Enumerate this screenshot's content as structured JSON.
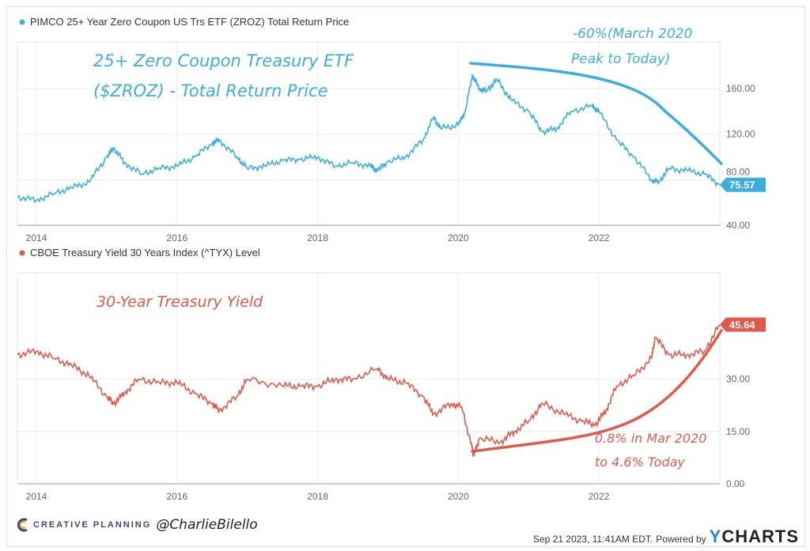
{
  "chart_data": [
    {
      "type": "line",
      "legend": "PIMCO 25+ Year Zero Coupon US Trs ETF (ZROZ) Total Return Price",
      "annotation_title": [
        "25+ Zero Coupon Treasury ETF",
        "($ZROZ) - Total Return Price"
      ],
      "annotation_note": [
        "-60%(March 2020",
        "Peak to Today)"
      ],
      "color": "#3aaee0",
      "last_value_label": "75.57",
      "xlim": [
        2013.73,
        2023.72
      ],
      "ylim": [
        40,
        201
      ],
      "x_ticks": [
        "2014",
        "2016",
        "2018",
        "2020",
        "2022"
      ],
      "y_ticks": [
        "40.00",
        "80.00",
        "120.00",
        "160.00"
      ],
      "grid": true,
      "x": [
        2013.73,
        2014.0,
        2014.25,
        2014.5,
        2014.75,
        2015.0,
        2015.1,
        2015.25,
        2015.5,
        2015.75,
        2016.0,
        2016.25,
        2016.5,
        2016.6,
        2016.85,
        2017.0,
        2017.25,
        2017.5,
        2017.75,
        2018.0,
        2018.25,
        2018.5,
        2018.75,
        2018.85,
        2019.0,
        2019.25,
        2019.5,
        2019.65,
        2019.75,
        2020.0,
        2020.1,
        2020.2,
        2020.3,
        2020.4,
        2020.55,
        2020.75,
        2021.0,
        2021.2,
        2021.4,
        2021.6,
        2021.9,
        2022.0,
        2022.25,
        2022.5,
        2022.75,
        2022.85,
        2023.0,
        2023.25,
        2023.5,
        2023.72
      ],
      "y": [
        65,
        62,
        68,
        73,
        78,
        100,
        108,
        95,
        85,
        90,
        92,
        100,
        112,
        115,
        100,
        90,
        92,
        97,
        98,
        100,
        92,
        95,
        92,
        88,
        96,
        100,
        115,
        135,
        125,
        128,
        140,
        172,
        160,
        158,
        168,
        150,
        140,
        122,
        125,
        140,
        145,
        140,
        115,
        100,
        80,
        78,
        90,
        88,
        85,
        75.57
      ]
    },
    {
      "type": "line",
      "legend": "CBOE Treasury Yield 30 Years Index (^TYX) Level",
      "annotation_title": [
        "30-Year Treasury Yield"
      ],
      "annotation_note": [
        "0.8% in Mar 2020",
        "to 4.6% Today"
      ],
      "color": "#e05a4a",
      "last_value_label": "45.64",
      "xlim": [
        2013.73,
        2023.72
      ],
      "ylim": [
        0,
        60.5
      ],
      "x_ticks": [
        "2014",
        "2016",
        "2018",
        "2020",
        "2022"
      ],
      "y_ticks": [
        "0.00",
        "15.00",
        "30.00"
      ],
      "grid": true,
      "x": [
        2013.73,
        2014.0,
        2014.25,
        2014.5,
        2014.75,
        2015.0,
        2015.1,
        2015.25,
        2015.45,
        2015.75,
        2016.0,
        2016.25,
        2016.5,
        2016.6,
        2016.85,
        2017.0,
        2017.5,
        2017.75,
        2018.0,
        2018.25,
        2018.5,
        2018.85,
        2019.0,
        2019.25,
        2019.5,
        2019.65,
        2019.9,
        2020.05,
        2020.2,
        2020.22,
        2020.3,
        2020.6,
        2020.8,
        2021.0,
        2021.2,
        2021.5,
        2021.75,
        2021.95,
        2022.1,
        2022.25,
        2022.5,
        2022.75,
        2022.8,
        2023.0,
        2023.25,
        2023.5,
        2023.72
      ],
      "y": [
        37,
        38,
        36,
        34,
        31,
        25,
        23,
        26,
        30,
        29,
        29,
        26,
        23,
        21,
        25,
        30,
        28,
        28,
        28,
        30,
        30,
        33,
        30,
        29,
        25,
        20,
        23,
        22,
        10,
        8,
        13,
        12,
        15,
        18,
        23,
        20,
        18,
        17,
        21,
        28,
        31,
        36,
        42,
        37,
        37,
        38,
        45.64
      ]
    }
  ],
  "footer": {
    "brand": "CREATIVE PLANNING",
    "handle": "@CharlieBilello",
    "timestamp": "Sep 21 2023, 11:41AM EDT.",
    "powered_by": "Powered by",
    "logo_y": "Y",
    "logo_rest": "CHARTS"
  }
}
